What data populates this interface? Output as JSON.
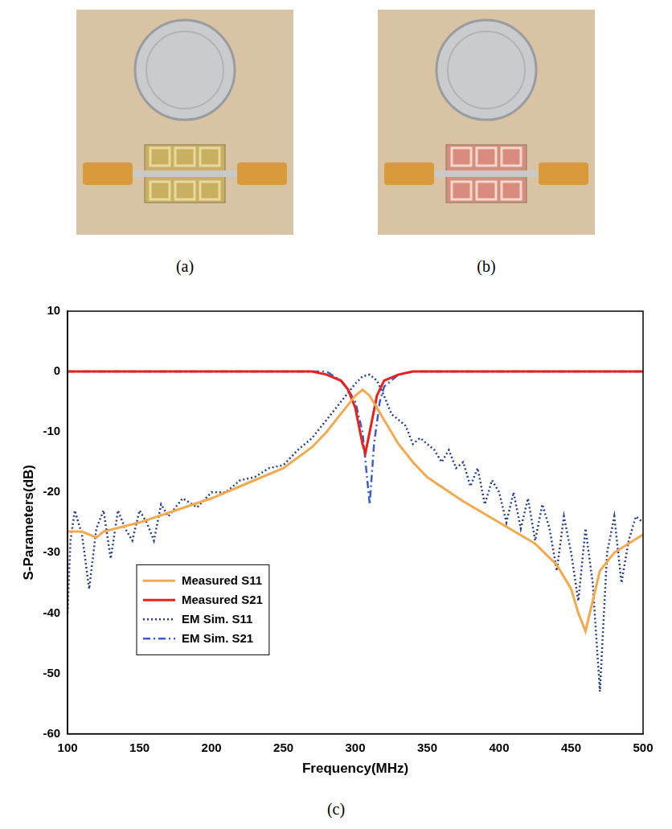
{
  "captions": [
    "(a)",
    "(b)",
    "(c)"
  ],
  "chart_data": {
    "type": "line",
    "x_label": "Frequency(MHz)",
    "y_label": "S-Parameters(dB)",
    "xlim": [
      100,
      500
    ],
    "xticks": [
      100,
      150,
      200,
      250,
      300,
      350,
      400,
      450,
      500
    ],
    "ylim": [
      -60,
      10
    ],
    "yticks": [
      -60,
      -50,
      -40,
      -30,
      -20,
      -10,
      0,
      10
    ],
    "grid": false,
    "legend": "lower left",
    "series": [
      {
        "name": "Measured S11",
        "color": "#f5a94e",
        "line_style": "solid",
        "x": [
          100,
          110,
          120,
          125,
          150,
          175,
          200,
          225,
          250,
          270,
          280,
          290,
          300,
          305,
          310,
          320,
          330,
          340,
          350,
          375,
          400,
          425,
          440,
          450,
          455,
          460,
          465,
          470,
          480,
          490,
          500
        ],
        "values": [
          -26.5,
          -26.5,
          -27.5,
          -26.5,
          -25,
          -23,
          -21,
          -18.5,
          -16,
          -12.5,
          -10,
          -7,
          -4,
          -3,
          -4,
          -8,
          -12,
          -15,
          -17.5,
          -21.5,
          -25,
          -28.5,
          -32,
          -36,
          -40,
          -43,
          -38,
          -33,
          -30,
          -28.5,
          -27
        ]
      },
      {
        "name": "Measured S21",
        "color": "#e8221b",
        "line_style": "solid",
        "x": [
          100,
          200,
          270,
          280,
          290,
          295,
          300,
          305,
          307,
          310,
          315,
          320,
          330,
          340,
          400,
          500
        ],
        "values": [
          0,
          0,
          0,
          -0.5,
          -1.5,
          -3,
          -6,
          -12,
          -13.5,
          -10,
          -4,
          -1.5,
          -0.5,
          0,
          0,
          0
        ]
      },
      {
        "name": "EM Sim. S11",
        "color": "#27408b",
        "line_style": "dotted",
        "x": [
          100,
          102,
          105,
          110,
          115,
          120,
          125,
          130,
          135,
          140,
          145,
          150,
          155,
          160,
          165,
          170,
          180,
          190,
          200,
          210,
          220,
          230,
          240,
          250,
          260,
          270,
          280,
          290,
          300,
          305,
          310,
          315,
          320,
          325,
          330,
          335,
          340,
          345,
          350,
          355,
          360,
          365,
          370,
          375,
          380,
          385,
          390,
          395,
          400,
          405,
          410,
          415,
          420,
          425,
          430,
          435,
          440,
          445,
          450,
          455,
          460,
          465,
          470,
          475,
          480,
          485,
          490,
          495,
          500
        ],
        "values": [
          -40,
          -28,
          -23,
          -27,
          -36,
          -26,
          -23,
          -31,
          -23,
          -26,
          -28,
          -23,
          -25,
          -28,
          -22,
          -24,
          -21,
          -22.5,
          -20,
          -20,
          -18,
          -17.5,
          -16,
          -15.5,
          -13,
          -11,
          -8,
          -5,
          -2,
          -0.8,
          -0.5,
          -1.5,
          -4,
          -7,
          -8,
          -9,
          -12,
          -11,
          -12,
          -13,
          -15,
          -13,
          -16,
          -15,
          -19,
          -16,
          -22,
          -18,
          -20,
          -25,
          -20,
          -26,
          -21,
          -28,
          -22,
          -26,
          -33,
          -24,
          -30,
          -38,
          -26,
          -35,
          -53,
          -30,
          -24,
          -35,
          -28,
          -24,
          -25
        ]
      },
      {
        "name": "EM Sim. S21",
        "color": "#3a5fcd",
        "line_style": "dashdot",
        "x": [
          100,
          200,
          280,
          290,
          295,
          300,
          305,
          310,
          313,
          317,
          320,
          330,
          340,
          400,
          500
        ],
        "values": [
          0,
          0,
          0,
          -1.5,
          -3,
          -5,
          -10,
          -22,
          -12,
          -5,
          -2.5,
          -0.5,
          0,
          0,
          0
        ]
      }
    ]
  }
}
